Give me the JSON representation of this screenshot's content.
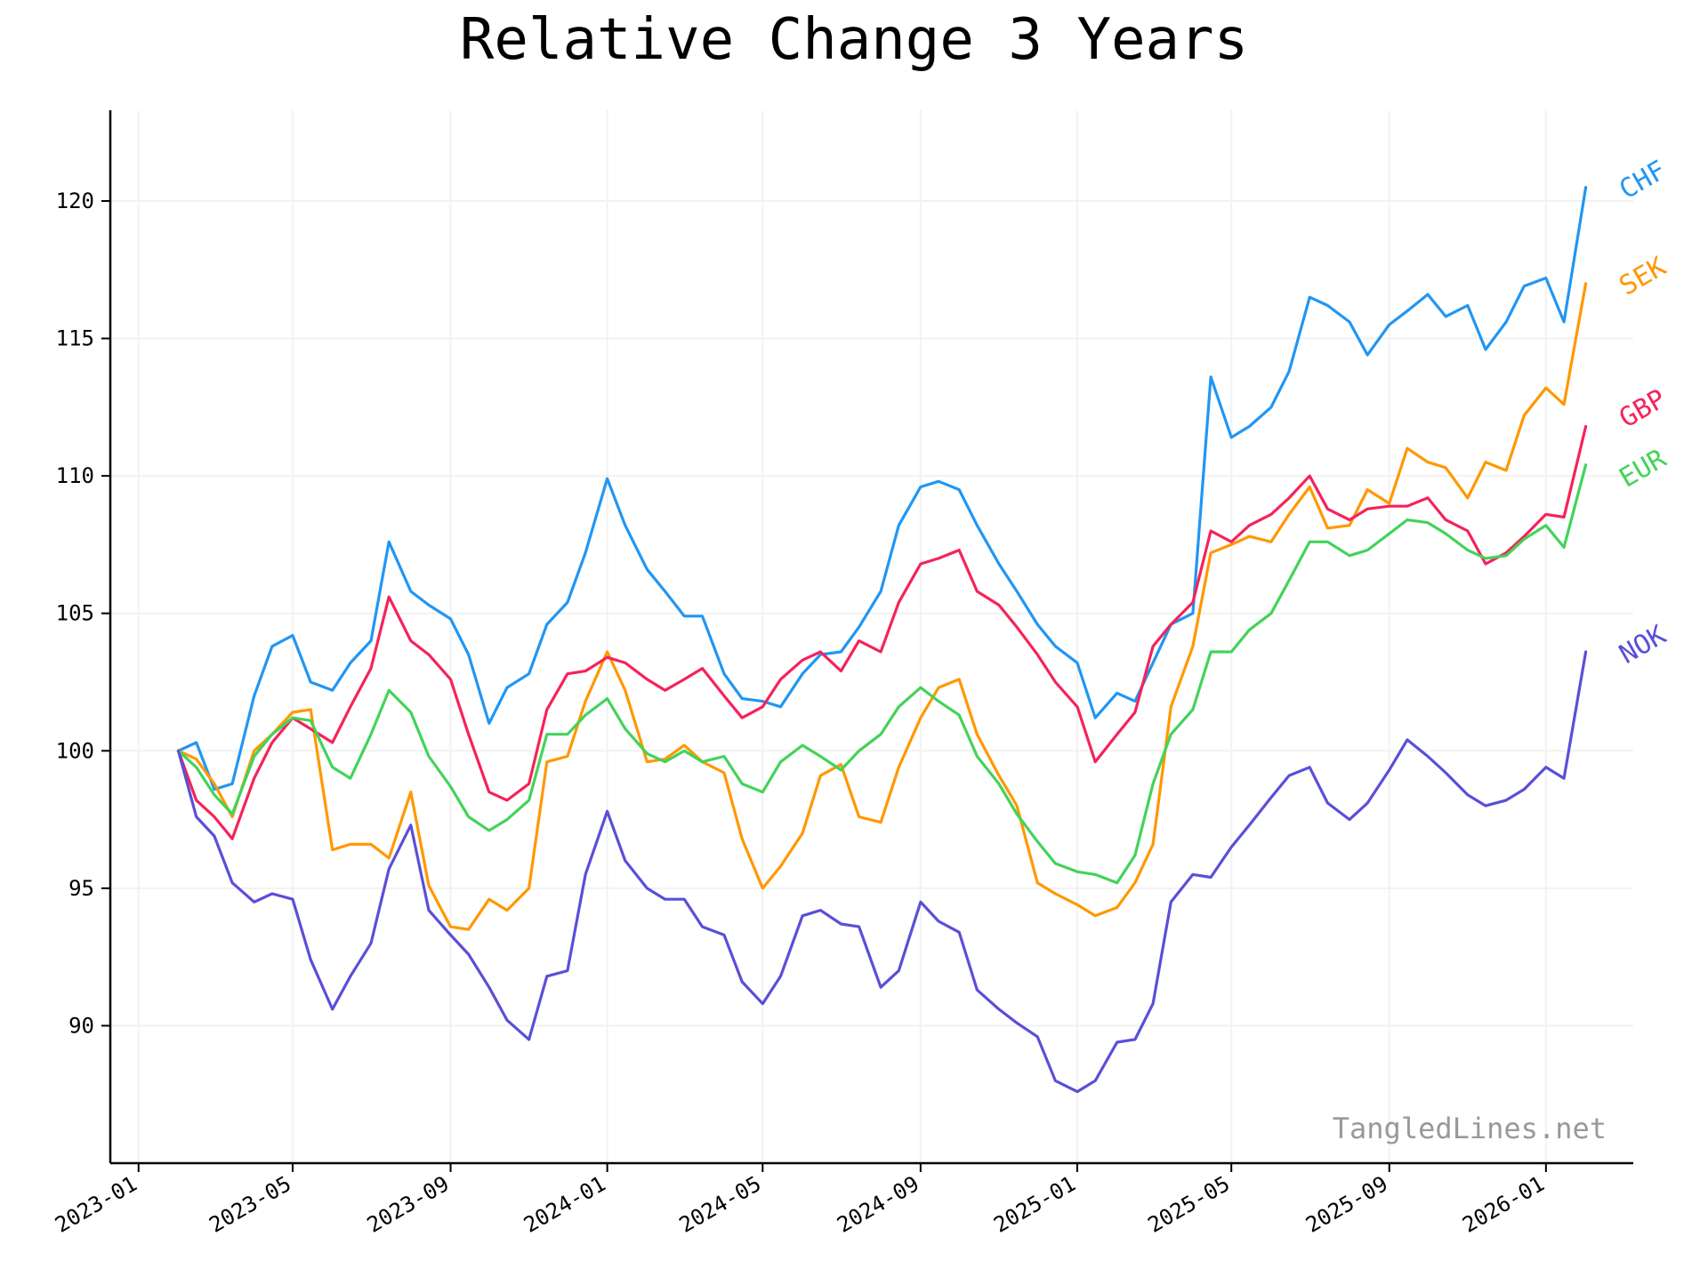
{
  "chart_data": {
    "type": "line",
    "title": "Relative Change 3 Years",
    "xlabel": "",
    "ylabel": "",
    "x_ticks": [
      "2023-01",
      "2023-05",
      "2023-09",
      "2024-01",
      "2024-05",
      "2024-09",
      "2025-01",
      "2025-05",
      "2025-09",
      "2026-01"
    ],
    "y_ticks": [
      90,
      95,
      100,
      105,
      110,
      115,
      120
    ],
    "xlim": [
      "2022-12-10",
      "2026-03-10"
    ],
    "ylim": [
      85.0,
      123.3
    ],
    "grid": true,
    "legend": "labels at right end of each line",
    "watermark": "TangledLines.net",
    "x": [
      "2023-02-01",
      "2023-02-15",
      "2023-03-01",
      "2023-03-15",
      "2023-04-01",
      "2023-04-15",
      "2023-05-01",
      "2023-05-15",
      "2023-06-01",
      "2023-06-15",
      "2023-07-01",
      "2023-07-15",
      "2023-08-01",
      "2023-08-15",
      "2023-09-01",
      "2023-09-15",
      "2023-10-01",
      "2023-10-15",
      "2023-11-01",
      "2023-11-15",
      "2023-12-01",
      "2023-12-15",
      "2024-01-01",
      "2024-01-15",
      "2024-02-01",
      "2024-02-15",
      "2024-03-01",
      "2024-03-15",
      "2024-04-01",
      "2024-04-15",
      "2024-05-01",
      "2024-05-15",
      "2024-06-01",
      "2024-06-15",
      "2024-07-01",
      "2024-07-15",
      "2024-08-01",
      "2024-08-15",
      "2024-09-01",
      "2024-09-15",
      "2024-10-01",
      "2024-10-15",
      "2024-11-01",
      "2024-11-15",
      "2024-12-01",
      "2024-12-15",
      "2025-01-01",
      "2025-01-15",
      "2025-02-01",
      "2025-02-15",
      "2025-03-01",
      "2025-03-15",
      "2025-04-01",
      "2025-04-15",
      "2025-05-01",
      "2025-05-15",
      "2025-06-01",
      "2025-06-15",
      "2025-07-01",
      "2025-07-15",
      "2025-08-01",
      "2025-08-15",
      "2025-09-01",
      "2025-09-15",
      "2025-10-01",
      "2025-10-15",
      "2025-11-01",
      "2025-11-15",
      "2025-12-01",
      "2025-12-15",
      "2026-01-01",
      "2026-01-15",
      "2026-02-01"
    ],
    "series": [
      {
        "name": "CHF",
        "color": "#2196f3",
        "values": [
          100.0,
          100.3,
          98.6,
          98.8,
          102.0,
          103.8,
          104.2,
          102.5,
          102.2,
          103.2,
          104.0,
          107.6,
          105.8,
          105.3,
          104.8,
          103.5,
          101.0,
          102.3,
          102.8,
          104.6,
          105.4,
          107.2,
          109.9,
          108.2,
          106.6,
          105.8,
          104.9,
          104.9,
          102.8,
          101.9,
          101.8,
          101.6,
          102.8,
          103.5,
          103.6,
          104.5,
          105.8,
          108.2,
          109.6,
          109.8,
          109.5,
          108.2,
          106.8,
          105.8,
          104.6,
          103.8,
          103.2,
          101.2,
          102.1,
          101.8,
          103.2,
          104.6,
          105.0,
          113.6,
          111.4,
          111.8,
          112.5,
          113.8,
          116.5,
          116.2,
          115.6,
          114.4,
          115.5,
          116.0,
          116.6,
          115.8,
          116.2,
          114.6,
          115.6,
          116.9,
          117.2,
          115.6,
          120.5
        ]
      },
      {
        "name": "SEK",
        "color": "#ff9800",
        "values": [
          100.0,
          99.7,
          98.8,
          97.6,
          100.0,
          100.6,
          101.4,
          101.5,
          96.4,
          96.6,
          96.6,
          96.1,
          98.5,
          95.1,
          93.6,
          93.5,
          94.6,
          94.2,
          95.0,
          99.6,
          99.8,
          101.8,
          103.6,
          102.2,
          99.6,
          99.7,
          100.2,
          99.6,
          99.2,
          96.8,
          95.0,
          95.8,
          97.0,
          99.1,
          99.5,
          97.6,
          97.4,
          99.4,
          101.2,
          102.3,
          102.6,
          100.6,
          99.1,
          98.0,
          95.2,
          94.8,
          94.4,
          94.0,
          94.3,
          95.2,
          96.6,
          101.6,
          103.8,
          107.2,
          107.5,
          107.8,
          107.6,
          108.6,
          109.6,
          108.1,
          108.2,
          109.5,
          109.0,
          111.0,
          110.5,
          110.3,
          109.2,
          110.5,
          110.2,
          112.2,
          113.2,
          112.6,
          117.0
        ]
      },
      {
        "name": "GBP",
        "color": "#f5235a",
        "values": [
          100.0,
          98.2,
          97.6,
          96.8,
          99.0,
          100.3,
          101.2,
          100.8,
          100.3,
          101.6,
          103.0,
          105.6,
          104.0,
          103.5,
          102.6,
          100.6,
          98.5,
          98.2,
          98.8,
          101.5,
          102.8,
          102.9,
          103.4,
          103.2,
          102.6,
          102.2,
          102.6,
          103.0,
          102.0,
          101.2,
          101.6,
          102.6,
          103.3,
          103.6,
          102.9,
          104.0,
          103.6,
          105.4,
          106.8,
          107.0,
          107.3,
          105.8,
          105.3,
          104.5,
          103.5,
          102.5,
          101.6,
          99.6,
          100.6,
          101.4,
          103.8,
          104.6,
          105.4,
          108.0,
          107.6,
          108.2,
          108.6,
          109.2,
          110.0,
          108.8,
          108.4,
          108.8,
          108.9,
          108.9,
          109.2,
          108.4,
          108.0,
          106.8,
          107.2,
          107.8,
          108.6,
          108.5,
          111.8
        ]
      },
      {
        "name": "EUR",
        "color": "#43d35a",
        "values": [
          100.0,
          99.4,
          98.4,
          97.7,
          99.8,
          100.6,
          101.2,
          101.1,
          99.4,
          99.0,
          100.6,
          102.2,
          101.4,
          99.8,
          98.7,
          97.6,
          97.1,
          97.5,
          98.2,
          100.6,
          100.6,
          101.3,
          101.9,
          100.8,
          99.9,
          99.6,
          100.0,
          99.6,
          99.8,
          98.8,
          98.5,
          99.6,
          100.2,
          99.8,
          99.3,
          100.0,
          100.6,
          101.6,
          102.3,
          101.8,
          101.3,
          99.8,
          98.8,
          97.7,
          96.7,
          95.9,
          95.6,
          95.5,
          95.2,
          96.2,
          98.8,
          100.6,
          101.5,
          103.6,
          103.6,
          104.4,
          105.0,
          106.2,
          107.6,
          107.6,
          107.1,
          107.3,
          107.9,
          108.4,
          108.3,
          107.9,
          107.3,
          107.0,
          107.1,
          107.7,
          108.2,
          107.4,
          110.4
        ]
      },
      {
        "name": "NOK",
        "color": "#5a4fd8",
        "values": [
          100.0,
          97.6,
          96.9,
          95.2,
          94.5,
          94.8,
          94.6,
          92.4,
          90.6,
          91.8,
          93.0,
          95.7,
          97.3,
          94.2,
          93.3,
          92.6,
          91.4,
          90.2,
          89.5,
          91.8,
          92.0,
          95.5,
          97.8,
          96.0,
          95.0,
          94.6,
          94.6,
          93.6,
          93.3,
          91.6,
          90.8,
          91.8,
          94.0,
          94.2,
          93.7,
          93.6,
          91.4,
          92.0,
          94.5,
          93.8,
          93.4,
          91.3,
          90.6,
          90.1,
          89.6,
          88.0,
          87.6,
          88.0,
          89.4,
          89.5,
          90.8,
          94.5,
          95.5,
          95.4,
          96.5,
          97.3,
          98.3,
          99.1,
          99.4,
          98.1,
          97.5,
          98.1,
          99.3,
          100.4,
          99.8,
          99.2,
          98.4,
          98.0,
          98.2,
          98.6,
          99.4,
          99.0,
          103.6
        ]
      }
    ]
  }
}
